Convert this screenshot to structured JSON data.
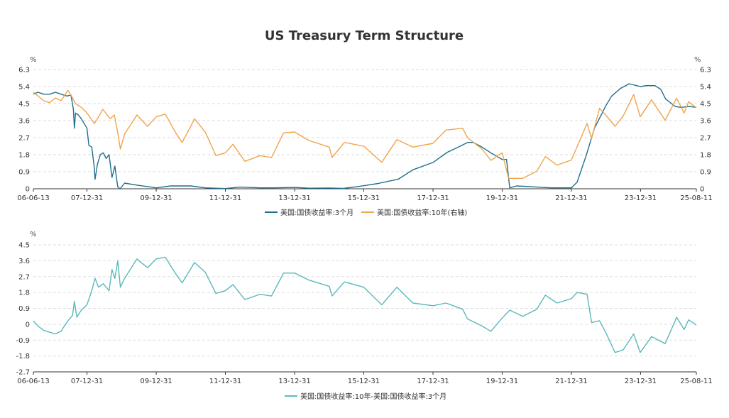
{
  "chart_data": [
    {
      "type": "line",
      "title": "US Treasury Term Structure",
      "y_unit_left": "%",
      "y_unit_right": "%",
      "ylim": [
        0,
        6.3
      ],
      "yticks": [
        "0",
        "0.9",
        "1.8",
        "2.7",
        "3.6",
        "4.5",
        "5.4",
        "6.3"
      ],
      "xticks": [
        "06-06-13",
        "07-12-31",
        "09-12-31",
        "11-12-31",
        "13-12-31",
        "15-12-31",
        "17-12-31",
        "19-12-31",
        "21-12-31",
        "23-12-31",
        "25-08-11"
      ],
      "x_range": [
        "2006-06-13",
        "2025-08-11"
      ],
      "grid": true,
      "legend_position": "bottom",
      "series": [
        {
          "name": "美国:国债收益率:3个月",
          "color": "#1f6e8c",
          "points": [
            [
              "2006-06-13",
              5.0
            ],
            [
              "2006-08-01",
              5.1
            ],
            [
              "2006-10-01",
              5.0
            ],
            [
              "2006-12-01",
              5.0
            ],
            [
              "2007-02-01",
              5.1
            ],
            [
              "2007-04-01",
              5.0
            ],
            [
              "2007-06-01",
              4.9
            ],
            [
              "2007-07-15",
              4.95
            ],
            [
              "2007-08-10",
              4.2
            ],
            [
              "2007-08-20",
              3.2
            ],
            [
              "2007-09-01",
              4.0
            ],
            [
              "2007-10-01",
              3.9
            ],
            [
              "2007-11-01",
              3.7
            ],
            [
              "2007-12-31",
              3.2
            ],
            [
              "2008-01-20",
              2.3
            ],
            [
              "2008-02-20",
              2.2
            ],
            [
              "2008-03-18",
              1.1
            ],
            [
              "2008-03-25",
              0.5
            ],
            [
              "2008-04-20",
              1.3
            ],
            [
              "2008-05-20",
              1.8
            ],
            [
              "2008-06-20",
              1.9
            ],
            [
              "2008-07-20",
              1.6
            ],
            [
              "2008-08-20",
              1.8
            ],
            [
              "2008-09-20",
              0.6
            ],
            [
              "2008-10-20",
              1.2
            ],
            [
              "2008-11-20",
              0.1
            ],
            [
              "2008-12-15",
              0.0
            ],
            [
              "2009-02-01",
              0.3
            ],
            [
              "2009-06-01",
              0.2
            ],
            [
              "2009-12-31",
              0.05
            ],
            [
              "2010-06-01",
              0.15
            ],
            [
              "2010-12-31",
              0.15
            ],
            [
              "2011-06-01",
              0.05
            ],
            [
              "2011-12-31",
              0.01
            ],
            [
              "2012-06-01",
              0.09
            ],
            [
              "2012-12-31",
              0.05
            ],
            [
              "2013-06-01",
              0.05
            ],
            [
              "2013-12-31",
              0.07
            ],
            [
              "2014-06-01",
              0.03
            ],
            [
              "2014-12-31",
              0.04
            ],
            [
              "2015-06-01",
              0.02
            ],
            [
              "2015-12-31",
              0.16
            ],
            [
              "2016-06-01",
              0.28
            ],
            [
              "2016-12-31",
              0.51
            ],
            [
              "2017-06-01",
              1.0
            ],
            [
              "2017-12-31",
              1.39
            ],
            [
              "2018-06-01",
              1.93
            ],
            [
              "2018-09-01",
              2.15
            ],
            [
              "2018-12-31",
              2.45
            ],
            [
              "2019-03-01",
              2.45
            ],
            [
              "2019-06-01",
              2.2
            ],
            [
              "2019-09-01",
              1.9
            ],
            [
              "2019-12-31",
              1.55
            ],
            [
              "2020-02-15",
              1.55
            ],
            [
              "2020-03-20",
              0.05
            ],
            [
              "2020-06-01",
              0.15
            ],
            [
              "2020-12-31",
              0.09
            ],
            [
              "2021-06-01",
              0.05
            ],
            [
              "2021-12-31",
              0.05
            ],
            [
              "2022-03-01",
              0.35
            ],
            [
              "2022-06-01",
              1.7
            ],
            [
              "2022-09-01",
              3.2
            ],
            [
              "2022-12-31",
              4.4
            ],
            [
              "2023-03-01",
              4.9
            ],
            [
              "2023-06-01",
              5.3
            ],
            [
              "2023-09-01",
              5.55
            ],
            [
              "2023-12-31",
              5.4
            ],
            [
              "2024-03-01",
              5.45
            ],
            [
              "2024-06-01",
              5.45
            ],
            [
              "2024-08-01",
              5.25
            ],
            [
              "2024-09-20",
              4.75
            ],
            [
              "2024-12-31",
              4.35
            ],
            [
              "2025-03-01",
              4.3
            ],
            [
              "2025-06-01",
              4.35
            ],
            [
              "2025-08-11",
              4.3
            ]
          ]
        },
        {
          "name": "美国:国债收益率:10年(右轴)",
          "color": "#f0a44b",
          "points": [
            [
              "2006-06-13",
              5.1
            ],
            [
              "2006-08-01",
              4.9
            ],
            [
              "2006-10-01",
              4.65
            ],
            [
              "2006-12-01",
              4.55
            ],
            [
              "2007-02-01",
              4.8
            ],
            [
              "2007-04-01",
              4.65
            ],
            [
              "2007-06-13",
              5.2
            ],
            [
              "2007-08-01",
              4.8
            ],
            [
              "2007-09-01",
              4.5
            ],
            [
              "2007-11-01",
              4.3
            ],
            [
              "2007-12-31",
              4.0
            ],
            [
              "2008-03-18",
              3.45
            ],
            [
              "2008-05-01",
              3.8
            ],
            [
              "2008-06-15",
              4.2
            ],
            [
              "2008-09-01",
              3.7
            ],
            [
              "2008-10-15",
              3.9
            ],
            [
              "2008-11-15",
              3.1
            ],
            [
              "2008-12-18",
              2.1
            ],
            [
              "2009-02-01",
              2.9
            ],
            [
              "2009-06-10",
              3.9
            ],
            [
              "2009-10-01",
              3.3
            ],
            [
              "2009-12-31",
              3.8
            ],
            [
              "2010-04-05",
              3.95
            ],
            [
              "2010-08-01",
              2.9
            ],
            [
              "2010-10-01",
              2.45
            ],
            [
              "2010-12-31",
              3.3
            ],
            [
              "2011-02-08",
              3.7
            ],
            [
              "2011-06-01",
              3.0
            ],
            [
              "2011-09-22",
              1.75
            ],
            [
              "2011-12-31",
              1.9
            ],
            [
              "2012-03-20",
              2.35
            ],
            [
              "2012-07-24",
              1.45
            ],
            [
              "2012-12-31",
              1.75
            ],
            [
              "2013-05-01",
              1.65
            ],
            [
              "2013-09-05",
              2.95
            ],
            [
              "2013-12-31",
              3.0
            ],
            [
              "2014-06-01",
              2.55
            ],
            [
              "2014-12-31",
              2.2
            ],
            [
              "2015-01-30",
              1.65
            ],
            [
              "2015-06-10",
              2.45
            ],
            [
              "2015-12-31",
              2.25
            ],
            [
              "2016-07-08",
              1.4
            ],
            [
              "2016-12-15",
              2.6
            ],
            [
              "2017-06-01",
              2.2
            ],
            [
              "2017-12-31",
              2.4
            ],
            [
              "2018-05-17",
              3.1
            ],
            [
              "2018-11-08",
              3.2
            ],
            [
              "2018-12-31",
              2.7
            ],
            [
              "2019-06-01",
              2.1
            ],
            [
              "2019-09-03",
              1.5
            ],
            [
              "2019-12-31",
              1.9
            ],
            [
              "2020-03-09",
              0.55
            ],
            [
              "2020-08-04",
              0.55
            ],
            [
              "2020-12-31",
              0.93
            ],
            [
              "2021-03-31",
              1.7
            ],
            [
              "2021-08-01",
              1.25
            ],
            [
              "2021-12-31",
              1.52
            ],
            [
              "2022-06-14",
              3.45
            ],
            [
              "2022-08-01",
              2.65
            ],
            [
              "2022-10-24",
              4.25
            ],
            [
              "2022-12-31",
              3.88
            ],
            [
              "2023-04-06",
              3.3
            ],
            [
              "2023-07-01",
              3.85
            ],
            [
              "2023-10-19",
              4.98
            ],
            [
              "2023-12-27",
              3.8
            ],
            [
              "2024-04-25",
              4.7
            ],
            [
              "2024-09-16",
              3.62
            ],
            [
              "2025-01-14",
              4.79
            ],
            [
              "2025-04-04",
              4.0
            ],
            [
              "2025-05-21",
              4.6
            ],
            [
              "2025-08-11",
              4.28
            ]
          ]
        }
      ]
    },
    {
      "type": "line",
      "title": "",
      "y_unit_left": "%",
      "ylim": [
        -2.7,
        4.5
      ],
      "yticks": [
        "-2.7",
        "-1.8",
        "-0.9",
        "0",
        "0.9",
        "1.8",
        "2.7",
        "3.6",
        "4.5"
      ],
      "xticks": [
        "06-06-13",
        "07-12-31",
        "09-12-31",
        "11-12-31",
        "13-12-31",
        "15-12-31",
        "17-12-31",
        "19-12-31",
        "21-12-31",
        "23-12-31",
        "25-08-11"
      ],
      "x_range": [
        "2006-06-13",
        "2025-08-11"
      ],
      "grid": true,
      "legend_position": "bottom",
      "series": [
        {
          "name": "美国:国债收益率:10年-美国:国债收益率:3个月",
          "color": "#5ab8bb",
          "points": [
            [
              "2006-06-13",
              0.2
            ],
            [
              "2006-08-01",
              -0.1
            ],
            [
              "2006-10-01",
              -0.35
            ],
            [
              "2006-12-01",
              -0.45
            ],
            [
              "2007-02-01",
              -0.55
            ],
            [
              "2007-04-01",
              -0.4
            ],
            [
              "2007-06-13",
              0.2
            ],
            [
              "2007-08-01",
              0.5
            ],
            [
              "2007-08-20",
              1.3
            ],
            [
              "2007-09-15",
              0.4
            ],
            [
              "2007-11-01",
              0.8
            ],
            [
              "2007-12-31",
              1.1
            ],
            [
              "2008-02-20",
              1.9
            ],
            [
              "2008-03-25",
              2.6
            ],
            [
              "2008-05-01",
              2.1
            ],
            [
              "2008-06-20",
              2.3
            ],
            [
              "2008-08-20",
              1.9
            ],
            [
              "2008-09-20",
              3.1
            ],
            [
              "2008-10-20",
              2.6
            ],
            [
              "2008-11-20",
              3.6
            ],
            [
              "2008-12-18",
              2.1
            ],
            [
              "2009-02-01",
              2.6
            ],
            [
              "2009-06-10",
              3.7
            ],
            [
              "2009-10-01",
              3.2
            ],
            [
              "2009-12-31",
              3.7
            ],
            [
              "2010-04-05",
              3.8
            ],
            [
              "2010-08-01",
              2.8
            ],
            [
              "2010-10-01",
              2.35
            ],
            [
              "2010-12-31",
              3.15
            ],
            [
              "2011-02-08",
              3.5
            ],
            [
              "2011-06-01",
              2.95
            ],
            [
              "2011-09-22",
              1.75
            ],
            [
              "2011-12-31",
              1.9
            ],
            [
              "2012-03-20",
              2.25
            ],
            [
              "2012-07-24",
              1.4
            ],
            [
              "2012-12-31",
              1.7
            ],
            [
              "2013-05-01",
              1.6
            ],
            [
              "2013-09-05",
              2.9
            ],
            [
              "2013-12-31",
              2.9
            ],
            [
              "2014-06-01",
              2.5
            ],
            [
              "2014-12-31",
              2.15
            ],
            [
              "2015-01-30",
              1.6
            ],
            [
              "2015-06-10",
              2.4
            ],
            [
              "2015-12-31",
              2.1
            ],
            [
              "2016-07-08",
              1.1
            ],
            [
              "2016-12-15",
              2.1
            ],
            [
              "2017-06-01",
              1.2
            ],
            [
              "2017-12-31",
              1.05
            ],
            [
              "2018-05-17",
              1.2
            ],
            [
              "2018-11-08",
              0.85
            ],
            [
              "2018-12-31",
              0.3
            ],
            [
              "2019-06-01",
              -0.1
            ],
            [
              "2019-09-03",
              -0.4
            ],
            [
              "2019-12-31",
              0.35
            ],
            [
              "2020-03-20",
              0.8
            ],
            [
              "2020-08-04",
              0.45
            ],
            [
              "2020-12-31",
              0.85
            ],
            [
              "2021-03-31",
              1.65
            ],
            [
              "2021-08-01",
              1.2
            ],
            [
              "2021-12-31",
              1.45
            ],
            [
              "2022-03-01",
              1.8
            ],
            [
              "2022-06-14",
              1.7
            ],
            [
              "2022-08-01",
              0.1
            ],
            [
              "2022-10-24",
              0.2
            ],
            [
              "2022-12-31",
              -0.5
            ],
            [
              "2023-04-06",
              -1.6
            ],
            [
              "2023-07-01",
              -1.45
            ],
            [
              "2023-10-19",
              -0.55
            ],
            [
              "2023-12-27",
              -1.6
            ],
            [
              "2024-04-25",
              -0.7
            ],
            [
              "2024-09-16",
              -1.1
            ],
            [
              "2024-12-31",
              0.2
            ],
            [
              "2025-01-14",
              0.4
            ],
            [
              "2025-04-04",
              -0.3
            ],
            [
              "2025-05-21",
              0.25
            ],
            [
              "2025-08-11",
              -0.05
            ]
          ]
        }
      ]
    }
  ]
}
